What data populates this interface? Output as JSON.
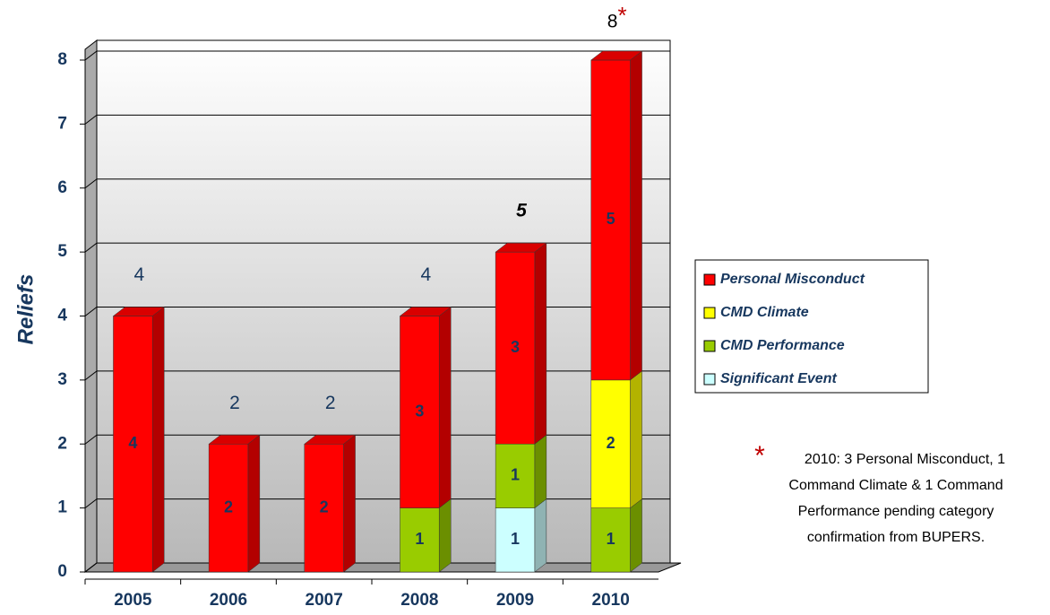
{
  "chart_data": {
    "type": "bar",
    "stacked": true,
    "y_label": "Reliefs",
    "categories": [
      "2005",
      "2006",
      "2007",
      "2008",
      "2009",
      "2010"
    ],
    "series": [
      {
        "name": "Personal Misconduct",
        "color": "#ff0000",
        "values": [
          4,
          2,
          2,
          3,
          3,
          5
        ]
      },
      {
        "name": "CMD Climate",
        "color": "#ffff00",
        "values": [
          null,
          null,
          null,
          null,
          null,
          2
        ]
      },
      {
        "name": "CMD Performance",
        "color": "#99cc00",
        "values": [
          null,
          null,
          null,
          1,
          1,
          1
        ]
      },
      {
        "name": "Significant Event",
        "color": "#ccffff",
        "values": [
          null,
          null,
          null,
          null,
          1,
          null
        ]
      }
    ],
    "totals": [
      4,
      2,
      2,
      4,
      5,
      8
    ],
    "total_marker": "*",
    "note": "2010: 3 Personal Misconduct, 1 Command Climate & 1 Command Performance pending category confirmation from BUPERS.",
    "ylim": [
      0,
      8
    ],
    "yticks": [
      0,
      1,
      2,
      3,
      4,
      5,
      6,
      7,
      8
    ],
    "grid": true,
    "legend": "right"
  }
}
